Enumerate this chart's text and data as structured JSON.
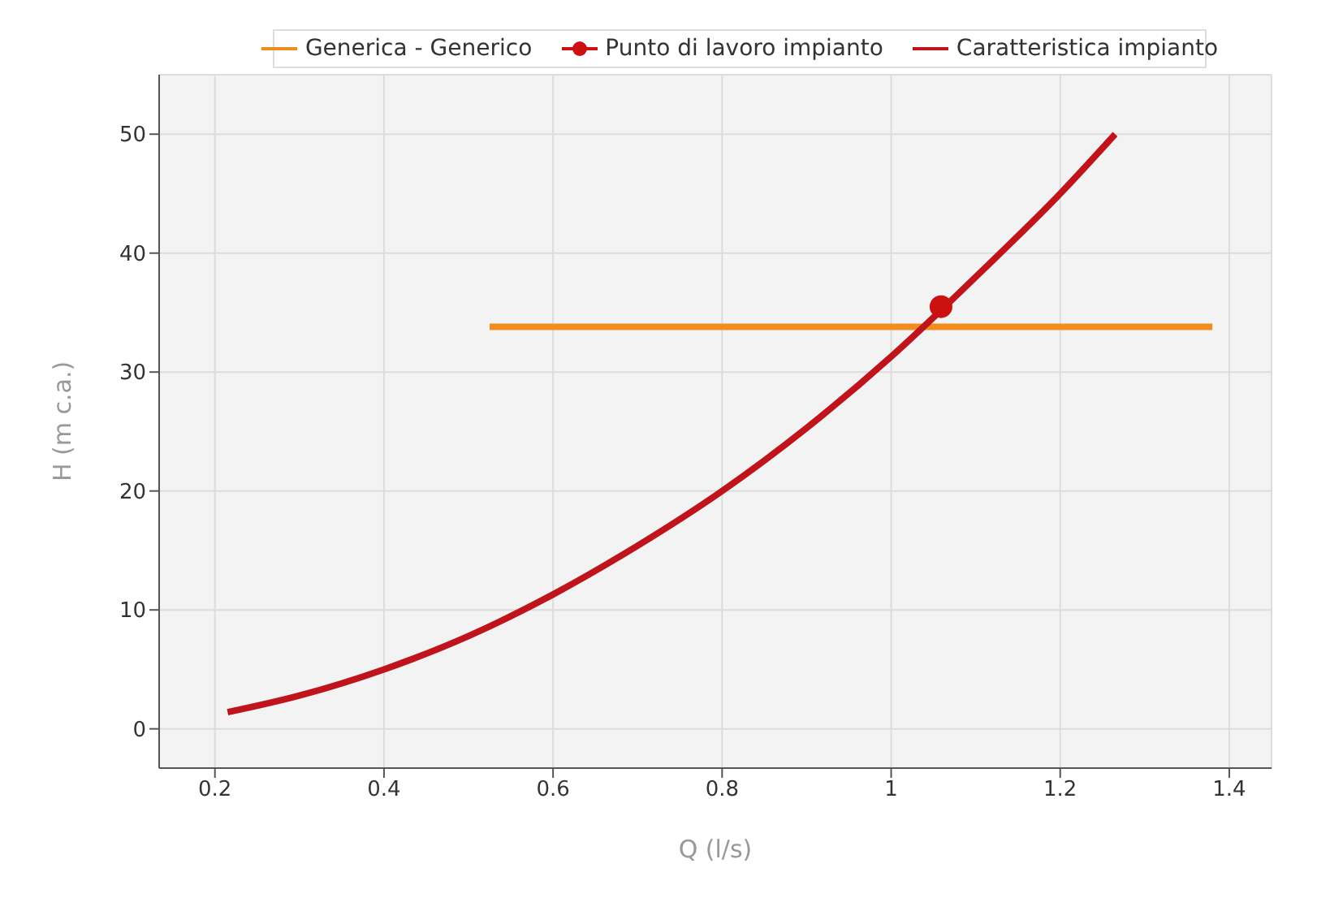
{
  "chart_data": {
    "type": "line",
    "xlabel": "Q (l/s)",
    "ylabel": "H (m c.a.)",
    "xlim": [
      0.134,
      1.45
    ],
    "ylim": [
      -3.3,
      55
    ],
    "xticks": [
      0.2,
      0.4,
      0.6,
      0.8,
      1,
      1.2,
      1.4
    ],
    "yticks": [
      0,
      10,
      20,
      30,
      40,
      50
    ],
    "grid": true,
    "legend": "top",
    "series": [
      {
        "name": "Generica - Generico",
        "color": "#f28c1e",
        "marker": "none",
        "x": [
          0.525,
          1.38
        ],
        "values": [
          33.8,
          33.8
        ]
      },
      {
        "name": "Punto di lavoro impianto",
        "type": "scatter",
        "color": "#cc1111",
        "marker": "circle",
        "x": [
          1.059
        ],
        "values": [
          35.5
        ]
      },
      {
        "name": "Caratteristica impianto",
        "color": "#c0141c",
        "marker": "none",
        "x": [
          0.215,
          0.3,
          0.4,
          0.5,
          0.6,
          0.7,
          0.8,
          0.9,
          1.0,
          1.1,
          1.2,
          1.265
        ],
        "values": [
          1.4,
          2.8,
          5,
          7.8,
          11.3,
          15.4,
          20,
          25.3,
          31.3,
          38,
          45,
          50
        ]
      }
    ]
  }
}
